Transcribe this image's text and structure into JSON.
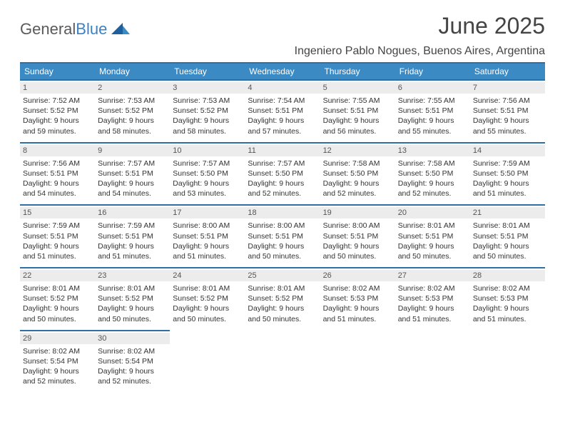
{
  "brand": {
    "part1": "General",
    "part2": "Blue"
  },
  "title": "June 2025",
  "location": "Ingeniero Pablo Nogues, Buenos Aires, Argentina",
  "colors": {
    "header_bg": "#3b8ac4",
    "header_border": "#2f6fa8",
    "daynum_bg": "#ececec",
    "text": "#333333",
    "logo_blue": "#3b82c4"
  },
  "typography": {
    "title_fontsize": 32,
    "location_fontsize": 16,
    "cell_fontsize": 10.5
  },
  "days_of_week": [
    "Sunday",
    "Monday",
    "Tuesday",
    "Wednesday",
    "Thursday",
    "Friday",
    "Saturday"
  ],
  "grid": {
    "columns": 7,
    "start_offset": 0,
    "num_days": 30
  },
  "days": [
    {
      "n": 1,
      "sunrise": "7:52 AM",
      "sunset": "5:52 PM",
      "daylight": "9 hours and 59 minutes."
    },
    {
      "n": 2,
      "sunrise": "7:53 AM",
      "sunset": "5:52 PM",
      "daylight": "9 hours and 58 minutes."
    },
    {
      "n": 3,
      "sunrise": "7:53 AM",
      "sunset": "5:52 PM",
      "daylight": "9 hours and 58 minutes."
    },
    {
      "n": 4,
      "sunrise": "7:54 AM",
      "sunset": "5:51 PM",
      "daylight": "9 hours and 57 minutes."
    },
    {
      "n": 5,
      "sunrise": "7:55 AM",
      "sunset": "5:51 PM",
      "daylight": "9 hours and 56 minutes."
    },
    {
      "n": 6,
      "sunrise": "7:55 AM",
      "sunset": "5:51 PM",
      "daylight": "9 hours and 55 minutes."
    },
    {
      "n": 7,
      "sunrise": "7:56 AM",
      "sunset": "5:51 PM",
      "daylight": "9 hours and 55 minutes."
    },
    {
      "n": 8,
      "sunrise": "7:56 AM",
      "sunset": "5:51 PM",
      "daylight": "9 hours and 54 minutes."
    },
    {
      "n": 9,
      "sunrise": "7:57 AM",
      "sunset": "5:51 PM",
      "daylight": "9 hours and 54 minutes."
    },
    {
      "n": 10,
      "sunrise": "7:57 AM",
      "sunset": "5:50 PM",
      "daylight": "9 hours and 53 minutes."
    },
    {
      "n": 11,
      "sunrise": "7:57 AM",
      "sunset": "5:50 PM",
      "daylight": "9 hours and 52 minutes."
    },
    {
      "n": 12,
      "sunrise": "7:58 AM",
      "sunset": "5:50 PM",
      "daylight": "9 hours and 52 minutes."
    },
    {
      "n": 13,
      "sunrise": "7:58 AM",
      "sunset": "5:50 PM",
      "daylight": "9 hours and 52 minutes."
    },
    {
      "n": 14,
      "sunrise": "7:59 AM",
      "sunset": "5:50 PM",
      "daylight": "9 hours and 51 minutes."
    },
    {
      "n": 15,
      "sunrise": "7:59 AM",
      "sunset": "5:51 PM",
      "daylight": "9 hours and 51 minutes."
    },
    {
      "n": 16,
      "sunrise": "7:59 AM",
      "sunset": "5:51 PM",
      "daylight": "9 hours and 51 minutes."
    },
    {
      "n": 17,
      "sunrise": "8:00 AM",
      "sunset": "5:51 PM",
      "daylight": "9 hours and 51 minutes."
    },
    {
      "n": 18,
      "sunrise": "8:00 AM",
      "sunset": "5:51 PM",
      "daylight": "9 hours and 50 minutes."
    },
    {
      "n": 19,
      "sunrise": "8:00 AM",
      "sunset": "5:51 PM",
      "daylight": "9 hours and 50 minutes."
    },
    {
      "n": 20,
      "sunrise": "8:01 AM",
      "sunset": "5:51 PM",
      "daylight": "9 hours and 50 minutes."
    },
    {
      "n": 21,
      "sunrise": "8:01 AM",
      "sunset": "5:51 PM",
      "daylight": "9 hours and 50 minutes."
    },
    {
      "n": 22,
      "sunrise": "8:01 AM",
      "sunset": "5:52 PM",
      "daylight": "9 hours and 50 minutes."
    },
    {
      "n": 23,
      "sunrise": "8:01 AM",
      "sunset": "5:52 PM",
      "daylight": "9 hours and 50 minutes."
    },
    {
      "n": 24,
      "sunrise": "8:01 AM",
      "sunset": "5:52 PM",
      "daylight": "9 hours and 50 minutes."
    },
    {
      "n": 25,
      "sunrise": "8:01 AM",
      "sunset": "5:52 PM",
      "daylight": "9 hours and 50 minutes."
    },
    {
      "n": 26,
      "sunrise": "8:02 AM",
      "sunset": "5:53 PM",
      "daylight": "9 hours and 51 minutes."
    },
    {
      "n": 27,
      "sunrise": "8:02 AM",
      "sunset": "5:53 PM",
      "daylight": "9 hours and 51 minutes."
    },
    {
      "n": 28,
      "sunrise": "8:02 AM",
      "sunset": "5:53 PM",
      "daylight": "9 hours and 51 minutes."
    },
    {
      "n": 29,
      "sunrise": "8:02 AM",
      "sunset": "5:54 PM",
      "daylight": "9 hours and 52 minutes."
    },
    {
      "n": 30,
      "sunrise": "8:02 AM",
      "sunset": "5:54 PM",
      "daylight": "9 hours and 52 minutes."
    }
  ],
  "labels": {
    "sunrise": "Sunrise:",
    "sunset": "Sunset:",
    "daylight": "Daylight:"
  }
}
